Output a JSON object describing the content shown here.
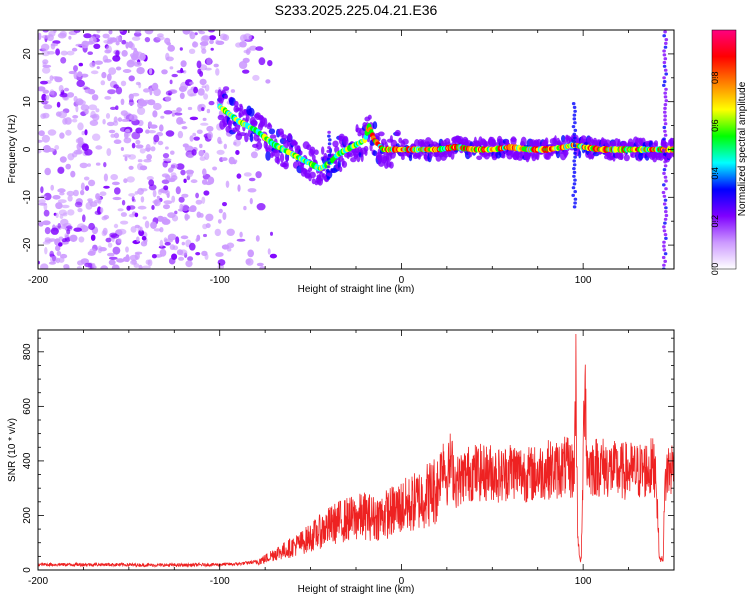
{
  "title": "S233.2025.225.04.21.E36",
  "chart_data": [
    {
      "type": "heatmap",
      "title": "S233.2025.225.04.21.E36",
      "xlabel": "Height of straight line (km)",
      "ylabel": "Frequency (Hz)",
      "xlim": [
        -200,
        150
      ],
      "ylim": [
        -25,
        25
      ],
      "x_ticks": [
        -200,
        -100,
        0,
        100
      ],
      "y_ticks": [
        -20,
        -10,
        0,
        10,
        20
      ],
      "colorbar": {
        "label": "Normalized spectral amplitude",
        "range": [
          0,
          1
        ],
        "ticks": [
          "0.0",
          "0.2",
          "0.4",
          "0.6",
          "0.8"
        ],
        "colors": [
          "#ffffff",
          "#cc99ff",
          "#7f00ff",
          "#0000ff",
          "#00ffff",
          "#00ff00",
          "#ffff00",
          "#ff8000",
          "#ff0000",
          "#ff0080"
        ]
      },
      "ridge": {
        "name": "dominant frequency track",
        "x": [
          -100,
          -90,
          -80,
          -70,
          -60,
          -50,
          -45,
          -40,
          -35,
          -30,
          -25,
          -20,
          -18,
          -15,
          -10,
          -5,
          0,
          10,
          20,
          30,
          40,
          50,
          60,
          70,
          80,
          90,
          95,
          100,
          110,
          120,
          130,
          140,
          150
        ],
        "y": [
          9,
          6,
          4,
          1,
          -1,
          -3,
          -4,
          -3,
          -1,
          0,
          1,
          2,
          5,
          2,
          0,
          0,
          0,
          0,
          0,
          0.5,
          0,
          0,
          0.5,
          0,
          0,
          0.5,
          1,
          0.5,
          0,
          0,
          0,
          0,
          0
        ]
      },
      "noise_region": {
        "x": [
          -200,
          -75
        ],
        "y": [
          -25,
          25
        ]
      }
    },
    {
      "type": "line",
      "xlabel": "Height of straight line (km)",
      "ylabel": "SNR (10 * v/v)",
      "xlim": [
        -200,
        150
      ],
      "ylim": [
        0,
        880
      ],
      "x_ticks": [
        -200,
        -100,
        0,
        100
      ],
      "y_ticks": [
        0,
        200,
        400,
        600,
        800
      ],
      "series": [
        {
          "name": "SNR",
          "color": "#ee2222",
          "x": [
            -200,
            -180,
            -160,
            -140,
            -120,
            -100,
            -90,
            -80,
            -75,
            -70,
            -65,
            -60,
            -55,
            -50,
            -45,
            -40,
            -35,
            -30,
            -25,
            -20,
            -15,
            -10,
            -5,
            0,
            5,
            10,
            15,
            20,
            23,
            25,
            27,
            30,
            35,
            40,
            45,
            50,
            55,
            60,
            65,
            70,
            75,
            80,
            85,
            90,
            95,
            96,
            97,
            98,
            99,
            100,
            101,
            102,
            105,
            110,
            115,
            120,
            125,
            130,
            135,
            140,
            141,
            142,
            143,
            144,
            145,
            146,
            148,
            150
          ],
          "y": [
            20,
            20,
            20,
            18,
            18,
            20,
            22,
            30,
            40,
            60,
            70,
            85,
            100,
            120,
            140,
            160,
            175,
            185,
            190,
            200,
            190,
            200,
            215,
            230,
            240,
            260,
            280,
            300,
            420,
            330,
            400,
            320,
            350,
            360,
            355,
            360,
            345,
            370,
            360,
            350,
            355,
            370,
            365,
            380,
            360,
            700,
            150,
            40,
            40,
            380,
            800,
            380,
            380,
            380,
            370,
            360,
            365,
            360,
            370,
            380,
            200,
            40,
            40,
            40,
            300,
            360,
            370,
            380
          ]
        }
      ]
    }
  ]
}
